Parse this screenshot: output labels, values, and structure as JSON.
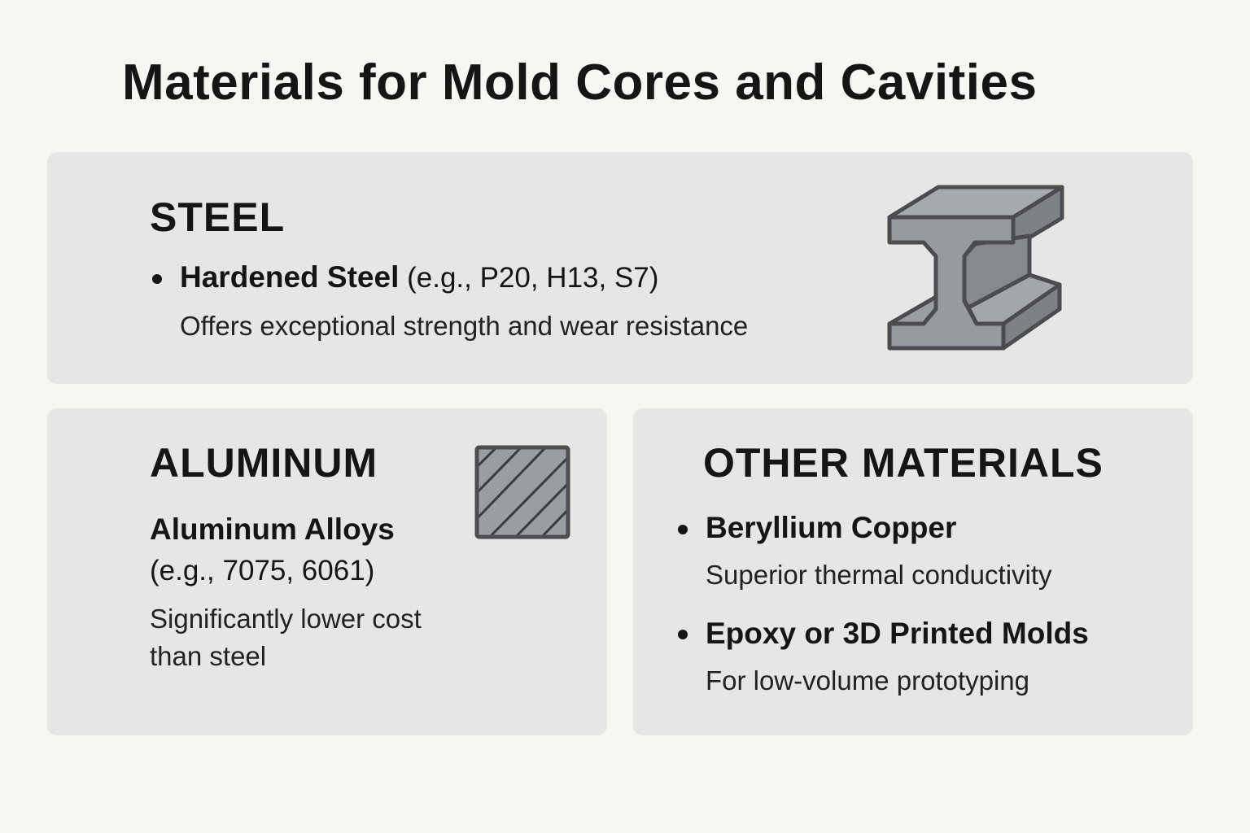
{
  "title": "Materials for Mold Cores and Cavities",
  "steel": {
    "heading": "STEEL",
    "item_name": "Hardened Steel",
    "item_examples": " (e.g., P20, H13, S7)",
    "description": "Offers exceptional strength and wear resistance",
    "icon": "i-beam-icon"
  },
  "aluminum": {
    "heading": "ALUMINUM",
    "item_name": "Aluminum Alloys",
    "item_examples": "(e.g., 7075, 6061)",
    "description_line1": "Significantly lower cost",
    "description_line2": "than steel",
    "icon": "hatched-square-icon"
  },
  "other": {
    "heading": "OTHER MATERIALS",
    "items": [
      {
        "name": "Beryllium Copper",
        "description": "Superior thermal conductivity"
      },
      {
        "name": "Epoxy or 3D Printed Molds",
        "description": "For low-volume prototyping"
      }
    ]
  },
  "colors": {
    "background": "#f7f6f3",
    "panel": "#e6e6e4",
    "icon_fill": "#8e9196",
    "icon_stroke": "#4a4c50"
  }
}
